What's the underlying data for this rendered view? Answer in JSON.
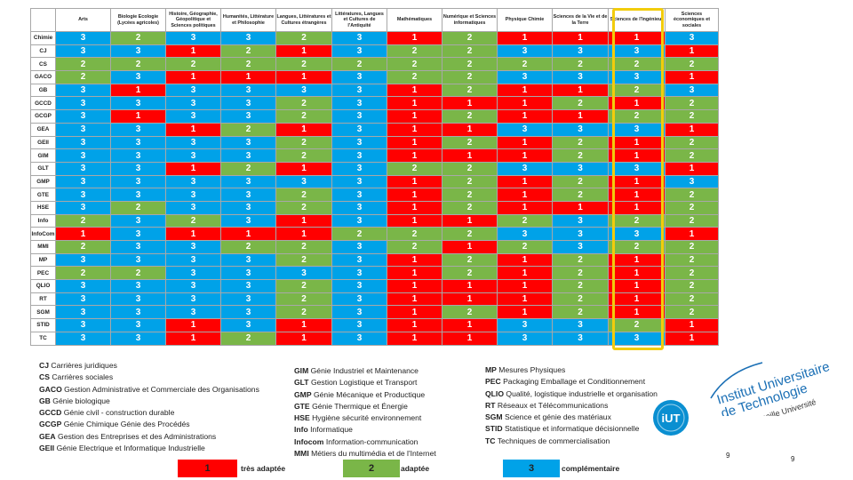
{
  "table": {
    "columns": [
      "",
      "Arts",
      "Biologie Ecologie (Lycées agricoles)",
      "Histoire, Géographie, Géopolitique et Sciences politiques",
      "Humanités, Littérature et Philosophie",
      "Langues, Littératures et Cultures étrangères",
      "Littératures, Langues et Cultures de l'Antiquité",
      "Mathématiques",
      "Numérique et Sciences informatiques",
      "Physique Chimie",
      "Sciences de la Vie et de la Terre",
      "Sciences de l'Ingénieur",
      "Sciences économiques et sociales"
    ],
    "rows": [
      {
        "label": "Chimie",
        "values": [
          "3",
          "2",
          "3",
          "3",
          "2",
          "3",
          "1",
          "2",
          "1",
          "1",
          "1",
          "3"
        ]
      },
      {
        "label": "CJ",
        "values": [
          "3",
          "3",
          "1",
          "2",
          "1",
          "3",
          "2",
          "2",
          "3",
          "3",
          "3",
          "1"
        ]
      },
      {
        "label": "CS",
        "values": [
          "2",
          "2",
          "2",
          "2",
          "2",
          "2",
          "2",
          "2",
          "2",
          "2",
          "2",
          "2"
        ]
      },
      {
        "label": "GACO",
        "values": [
          "2",
          "3",
          "1",
          "1",
          "1",
          "3",
          "2",
          "2",
          "3",
          "3",
          "3",
          "1"
        ]
      },
      {
        "label": "GB",
        "values": [
          "3",
          "1",
          "3",
          "3",
          "3",
          "3",
          "1",
          "2",
          "1",
          "1",
          "2",
          "3"
        ]
      },
      {
        "label": "GCCD",
        "values": [
          "3",
          "3",
          "3",
          "3",
          "2",
          "3",
          "1",
          "1",
          "1",
          "2",
          "1",
          "2"
        ]
      },
      {
        "label": "GCGP",
        "values": [
          "3",
          "1",
          "3",
          "3",
          "2",
          "3",
          "1",
          "2",
          "1",
          "1",
          "2",
          "2"
        ]
      },
      {
        "label": "GEA",
        "values": [
          "3",
          "3",
          "1",
          "2",
          "1",
          "3",
          "1",
          "1",
          "3",
          "3",
          "3",
          "1"
        ]
      },
      {
        "label": "GEII",
        "values": [
          "3",
          "3",
          "3",
          "3",
          "2",
          "3",
          "1",
          "2",
          "1",
          "2",
          "1",
          "2"
        ]
      },
      {
        "label": "GIM",
        "values": [
          "3",
          "3",
          "3",
          "3",
          "2",
          "3",
          "1",
          "1",
          "1",
          "2",
          "1",
          "2"
        ]
      },
      {
        "label": "GLT",
        "values": [
          "3",
          "3",
          "1",
          "2",
          "1",
          "3",
          "2",
          "2",
          "3",
          "3",
          "3",
          "1"
        ]
      },
      {
        "label": "GMP",
        "values": [
          "3",
          "3",
          "3",
          "3",
          "3",
          "3",
          "1",
          "2",
          "1",
          "2",
          "1",
          "3"
        ]
      },
      {
        "label": "GTE",
        "values": [
          "3",
          "3",
          "3",
          "3",
          "2",
          "3",
          "1",
          "2",
          "1",
          "2",
          "1",
          "2"
        ]
      },
      {
        "label": "HSE",
        "values": [
          "3",
          "2",
          "3",
          "3",
          "2",
          "3",
          "1",
          "2",
          "1",
          "1",
          "1",
          "2"
        ]
      },
      {
        "label": "Info",
        "values": [
          "2",
          "3",
          "2",
          "3",
          "1",
          "3",
          "1",
          "1",
          "2",
          "3",
          "2",
          "2"
        ]
      },
      {
        "label": "InfoCom",
        "values": [
          "1",
          "3",
          "1",
          "1",
          "1",
          "2",
          "2",
          "2",
          "3",
          "3",
          "3",
          "1"
        ]
      },
      {
        "label": "MMI",
        "values": [
          "2",
          "3",
          "3",
          "2",
          "2",
          "3",
          "2",
          "1",
          "2",
          "3",
          "2",
          "2"
        ]
      },
      {
        "label": "MP",
        "values": [
          "3",
          "3",
          "3",
          "3",
          "2",
          "3",
          "1",
          "2",
          "1",
          "2",
          "1",
          "2"
        ]
      },
      {
        "label": "PEC",
        "values": [
          "2",
          "2",
          "3",
          "3",
          "3",
          "3",
          "1",
          "2",
          "1",
          "2",
          "1",
          "2"
        ]
      },
      {
        "label": "QLIO",
        "values": [
          "3",
          "3",
          "3",
          "3",
          "2",
          "3",
          "1",
          "1",
          "1",
          "2",
          "1",
          "2"
        ]
      },
      {
        "label": "RT",
        "values": [
          "3",
          "3",
          "3",
          "3",
          "2",
          "3",
          "1",
          "1",
          "1",
          "2",
          "1",
          "2"
        ]
      },
      {
        "label": "SGM",
        "values": [
          "3",
          "3",
          "3",
          "3",
          "2",
          "3",
          "1",
          "2",
          "1",
          "2",
          "1",
          "2"
        ]
      },
      {
        "label": "STID",
        "values": [
          "3",
          "3",
          "1",
          "3",
          "1",
          "3",
          "1",
          "1",
          "3",
          "3",
          "2",
          "1"
        ]
      },
      {
        "label": "TC",
        "values": [
          "3",
          "3",
          "1",
          "2",
          "1",
          "3",
          "1",
          "1",
          "3",
          "3",
          "3",
          "1"
        ]
      }
    ]
  },
  "legend": {
    "col1": [
      {
        "abbr": "CJ",
        "text": "Carrières juridiques"
      },
      {
        "abbr": "CS",
        "text": "Carrières sociales"
      },
      {
        "abbr": "GACO",
        "text": "Gestion Administrative et Commerciale des Organisations"
      },
      {
        "abbr": "GB",
        "text": "Génie biologique"
      },
      {
        "abbr": "GCCD",
        "text": "Génie civil - construction durable"
      },
      {
        "abbr": "GCGP",
        "text": "Génie Chimique Génie des Procédés"
      },
      {
        "abbr": "GEA",
        "text": "Gestion des Entreprises et des Administrations"
      },
      {
        "abbr": "GEII",
        "text": "Génie Electrique et Informatique Industrielle"
      }
    ],
    "col2": [
      {
        "abbr": "GIM",
        "text": "Génie Industriel et Maintenance"
      },
      {
        "abbr": "GLT",
        "text": "Gestion Logistique et Transport"
      },
      {
        "abbr": "GMP",
        "text": "Génie Mécanique et Productique"
      },
      {
        "abbr": "GTE",
        "text": "Génie Thermique et Énergie"
      },
      {
        "abbr": "HSE",
        "text": "Hygiène sécurité environnement"
      },
      {
        "abbr": "Info",
        "text": "Informatique"
      },
      {
        "abbr": "Infocom",
        "text": "Information-communication"
      },
      {
        "abbr": "MMI",
        "text": "Métiers du multimédia et de l'Internet"
      }
    ],
    "col3": [
      {
        "abbr": "MP",
        "text": "Mesures Physiques"
      },
      {
        "abbr": "PEC",
        "text": "Packaging Emballage et Conditionnement"
      },
      {
        "abbr": "QLIO",
        "text": "Qualité, logistique industrielle et organisation"
      },
      {
        "abbr": "RT",
        "text": "Réseaux et Télécommunications"
      },
      {
        "abbr": "SGM",
        "text": "Science et génie des matériaux"
      },
      {
        "abbr": "STID",
        "text": "Statistique et informatique décisionnelle"
      },
      {
        "abbr": "TC",
        "text": "Techniques de commercialisation"
      }
    ]
  },
  "key": [
    {
      "value": "1",
      "label": "très adaptée",
      "color": "#ff0000"
    },
    {
      "value": "2",
      "label": "adaptée",
      "color": "#7ab648"
    },
    {
      "value": "3",
      "label": "complémentaire",
      "color": "#00a2e8"
    }
  ],
  "logo": {
    "line1": "Institut Universitaire",
    "line2": "de Technologie",
    "line3": "Aix Marseille Université",
    "badge": "iUT"
  },
  "page_numbers": {
    "small": "9",
    "large": "9"
  },
  "colors": {
    "v1": "#ff0000",
    "v2": "#7ab648",
    "v3": "#00a2e8",
    "highlight": "#f2cc0c"
  }
}
